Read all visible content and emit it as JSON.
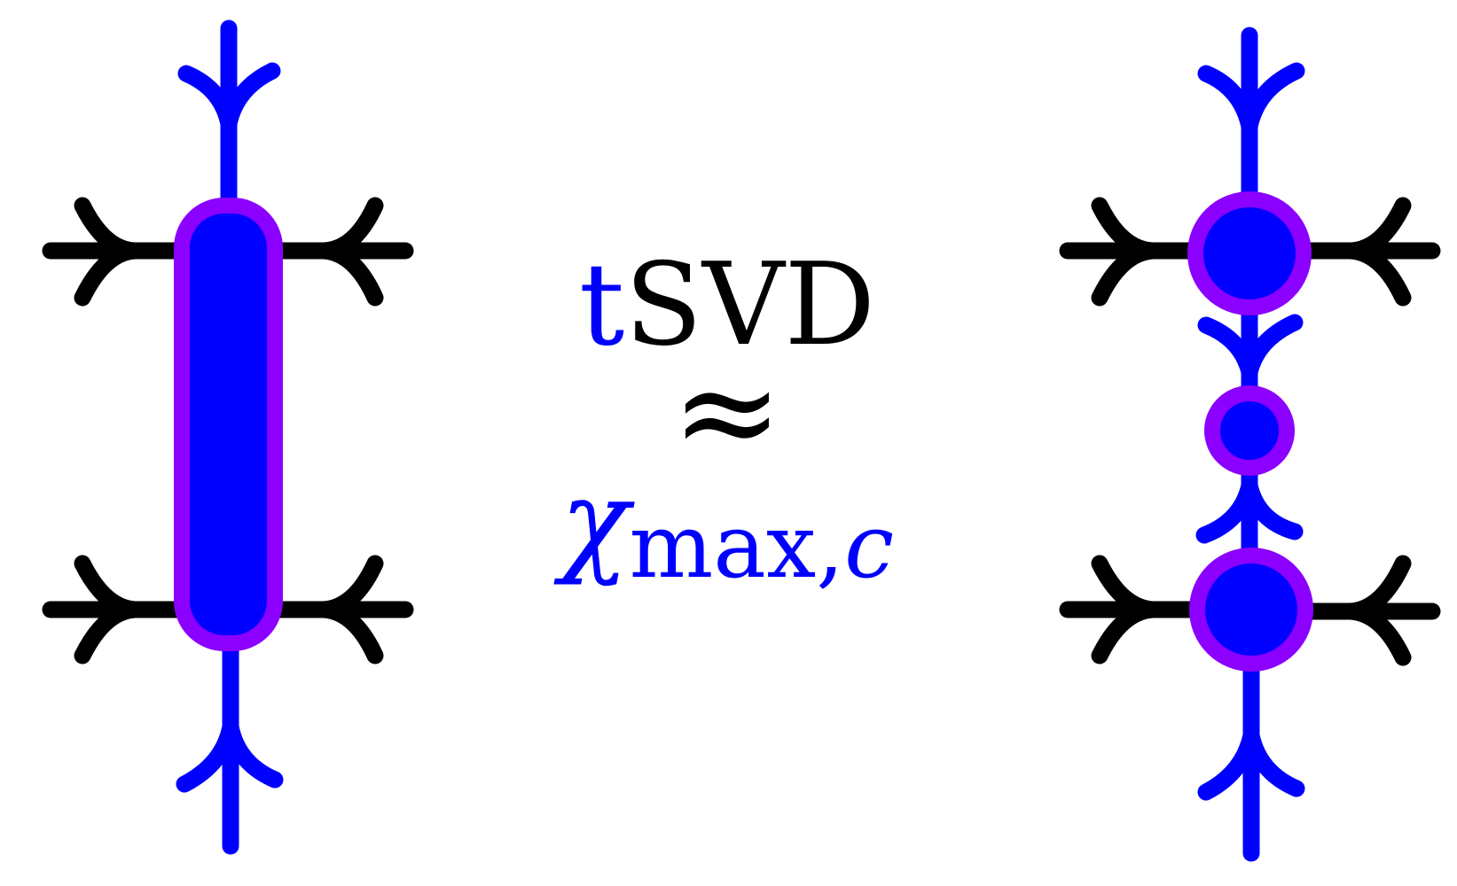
{
  "colors": {
    "leg_blue": "#0000ff",
    "leg_black": "#000000",
    "node_fill": "#0000ff",
    "node_outline": "#8b00ff",
    "text_black": "#000000",
    "text_blue": "#0000ff"
  },
  "label": {
    "prefix": "t",
    "method": "SVD",
    "relation": "≈",
    "chi_symbol": "χ",
    "chi_subscript": "max,",
    "chi_subscript_var": "c"
  },
  "left_diagram": {
    "description_name": "merged-tensor",
    "node_shape": "rounded-rectangle",
    "vertical_leg_count": 2,
    "horizontal_leg_count": 4
  },
  "right_diagram": {
    "description_name": "decomposed-tensors",
    "node_count": 3,
    "node_shapes": [
      "circle",
      "circle",
      "circle"
    ],
    "vertical_leg_count": 4,
    "horizontal_leg_count": 4
  }
}
